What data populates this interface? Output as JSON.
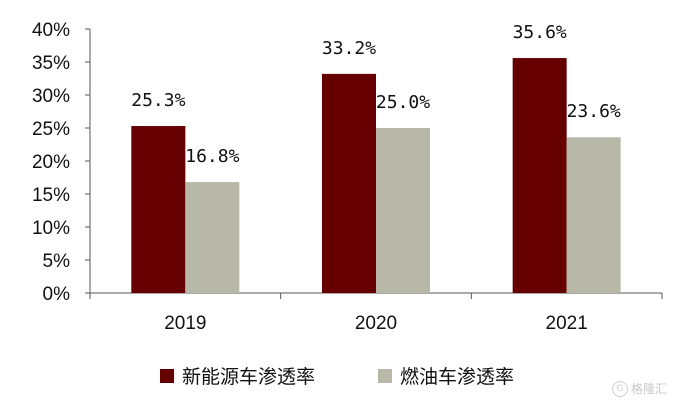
{
  "chart_data": {
    "type": "bar",
    "categories": [
      "2019",
      "2020",
      "2021"
    ],
    "series": [
      {
        "name": "新能源车渗透率",
        "values": [
          25.3,
          33.2,
          35.6
        ],
        "labels": [
          "25.3%",
          "33.2%",
          "35.6%"
        ],
        "color": "#660000"
      },
      {
        "name": "燃油车渗透率",
        "values": [
          16.8,
          25.0,
          23.6
        ],
        "labels": [
          "16.8%",
          "25.0%",
          "23.6%"
        ],
        "color": "#b8b8a8"
      }
    ],
    "y_ticks": [
      "0%",
      "5%",
      "10%",
      "15%",
      "20%",
      "25%",
      "30%",
      "35%",
      "40%"
    ],
    "ylim": [
      0,
      40
    ],
    "grid": false,
    "legend_position": "bottom"
  },
  "watermark": {
    "text": "格隆汇",
    "icon_char": "G"
  }
}
